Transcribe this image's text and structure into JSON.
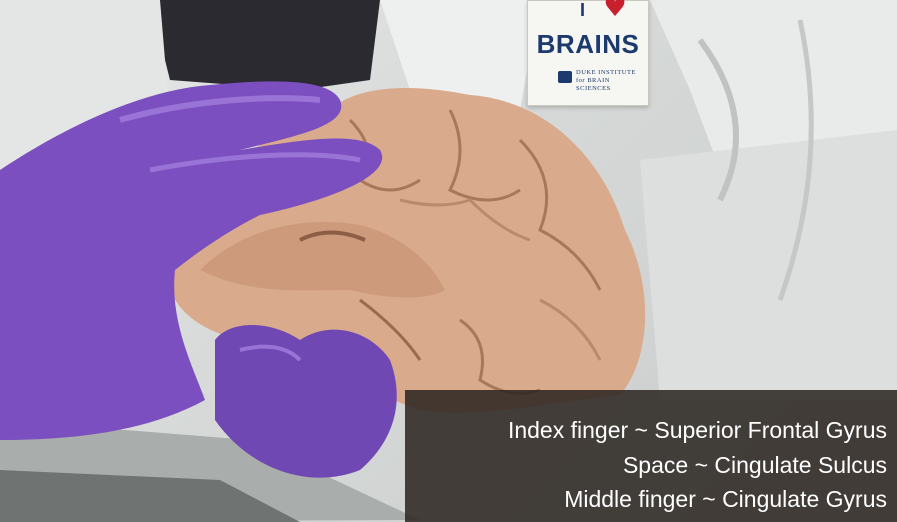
{
  "badge": {
    "prefix": "I",
    "heart_icon": "heart",
    "word": "BRAINS",
    "institute": "DUKE INSTITUTE for BRAIN SCIENCES"
  },
  "caption": {
    "lines": [
      "Index finger ~ Superior Frontal Gyrus",
      "Space ~ Cingulate Sulcus",
      "Middle finger ~ Cingulate Gyrus"
    ]
  },
  "colors": {
    "glove": "#7b4fbf",
    "brain": "#d9ab8c",
    "coat": "#e6e8e7",
    "caption_bg": "#2a2420",
    "badge_text": "#1c3a6e",
    "heart": "#c8202c"
  }
}
